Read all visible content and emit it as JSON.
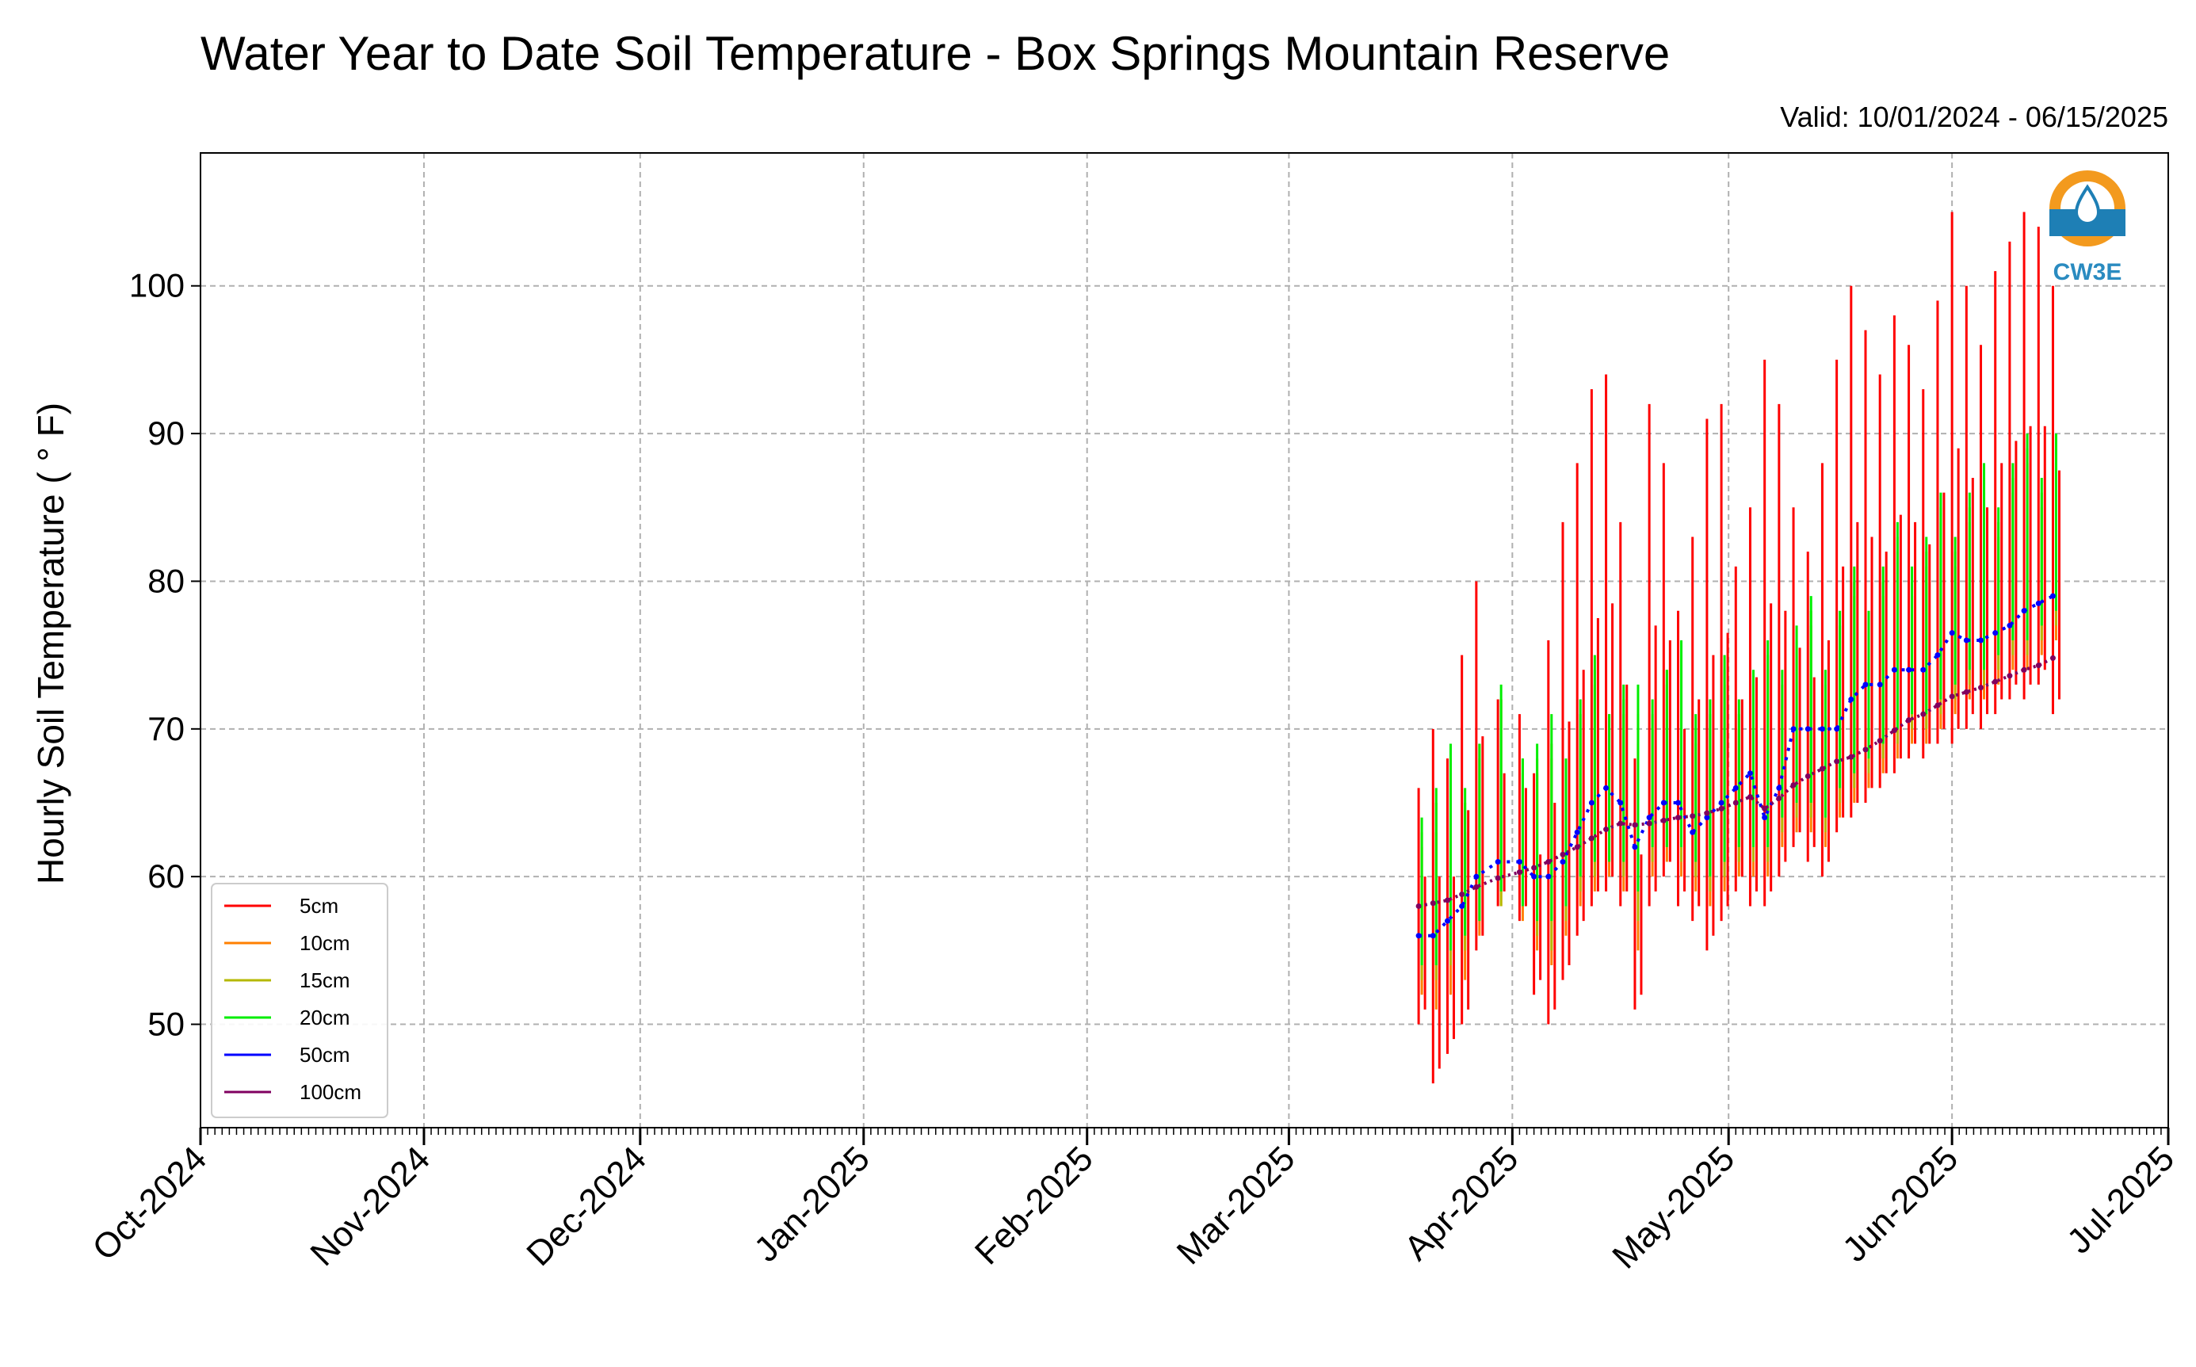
{
  "chart_data": {
    "type": "line",
    "title": "Water Year to Date Soil Temperature - Box Springs Mountain Reserve",
    "subtitle": "Valid: 10/01/2024 - 06/15/2025",
    "xlabel": "",
    "ylabel": "Hourly Soil Temperature ( ° F)",
    "xlim": [
      "2024-10-01",
      "2025-07-01"
    ],
    "ylim": [
      43,
      109
    ],
    "x_ticks": [
      "Oct-2024",
      "Nov-2024",
      "Dec-2024",
      "Jan-2025",
      "Feb-2025",
      "Mar-2025",
      "Apr-2025",
      "May-2025",
      "Jun-2025",
      "Jul-2025"
    ],
    "y_ticks": [
      50,
      60,
      70,
      80,
      90,
      100
    ],
    "grid": true,
    "legend_position": "lower-left",
    "logo_text": "CW3E",
    "series": [
      {
        "name": "5cm",
        "color": "#ff0000",
        "x": [
          "2025-03-19",
          "2025-03-21",
          "2025-03-23",
          "2025-03-25",
          "2025-03-27",
          "2025-03-30",
          "2025-04-02",
          "2025-04-04",
          "2025-04-06",
          "2025-04-08",
          "2025-04-10",
          "2025-04-12",
          "2025-04-14",
          "2025-04-16",
          "2025-04-18",
          "2025-04-20",
          "2025-04-22",
          "2025-04-24",
          "2025-04-26",
          "2025-04-28",
          "2025-04-30",
          "2025-05-02",
          "2025-05-04",
          "2025-05-06",
          "2025-05-08",
          "2025-05-10",
          "2025-05-12",
          "2025-05-14",
          "2025-05-16",
          "2025-05-18",
          "2025-05-20",
          "2025-05-22",
          "2025-05-24",
          "2025-05-26",
          "2025-05-28",
          "2025-05-30",
          "2025-06-01",
          "2025-06-03",
          "2025-06-05",
          "2025-06-07",
          "2025-06-09",
          "2025-06-11",
          "2025-06-13",
          "2025-06-15"
        ],
        "min": [
          50,
          46,
          48,
          50,
          55,
          58,
          57,
          52,
          50,
          53,
          56,
          58,
          59,
          58,
          51,
          58,
          60,
          58,
          57,
          55,
          57,
          59,
          58,
          58,
          60,
          62,
          61,
          60,
          63,
          64,
          65,
          66,
          67,
          68,
          68,
          69,
          69,
          70,
          70,
          71,
          72,
          72,
          73,
          71
        ],
        "max": [
          66,
          70,
          68,
          75,
          80,
          72,
          71,
          67,
          76,
          84,
          88,
          93,
          94,
          84,
          68,
          92,
          88,
          78,
          83,
          91,
          92,
          81,
          85,
          95,
          92,
          85,
          82,
          88,
          95,
          100,
          97,
          94,
          98,
          96,
          93,
          99,
          105,
          100,
          96,
          101,
          103,
          105,
          104,
          100
        ]
      },
      {
        "name": "10cm",
        "color": "#ff8000",
        "x": [
          "2025-03-19",
          "2025-03-21",
          "2025-03-23",
          "2025-03-25",
          "2025-03-27",
          "2025-03-30",
          "2025-04-02",
          "2025-04-04",
          "2025-04-06",
          "2025-04-08",
          "2025-04-10",
          "2025-04-12",
          "2025-04-14",
          "2025-04-16",
          "2025-04-18",
          "2025-04-20",
          "2025-04-22",
          "2025-04-24",
          "2025-04-26",
          "2025-04-28",
          "2025-04-30",
          "2025-05-02",
          "2025-05-04",
          "2025-05-06",
          "2025-05-08",
          "2025-05-10",
          "2025-05-12",
          "2025-05-14",
          "2025-05-16",
          "2025-05-18",
          "2025-05-20",
          "2025-05-22",
          "2025-05-24",
          "2025-05-26",
          "2025-05-28",
          "2025-05-30",
          "2025-06-01",
          "2025-06-03",
          "2025-06-05",
          "2025-06-07",
          "2025-06-09",
          "2025-06-11",
          "2025-06-13",
          "2025-06-15"
        ],
        "min": [
          52,
          51,
          52,
          53,
          56,
          58,
          57,
          55,
          54,
          56,
          58,
          59,
          60,
          59,
          55,
          60,
          61,
          60,
          59,
          58,
          59,
          60,
          60,
          60,
          62,
          63,
          63,
          62,
          64,
          65,
          66,
          67,
          68,
          69,
          69,
          70,
          71,
          72,
          72,
          73,
          74,
          74,
          75,
          76
        ]
      },
      {
        "name": "15cm",
        "color": "#b5b800",
        "x": [
          "2025-03-19",
          "2025-03-21",
          "2025-03-23",
          "2025-03-25",
          "2025-03-27",
          "2025-03-30",
          "2025-04-02",
          "2025-04-04",
          "2025-04-06",
          "2025-04-08",
          "2025-04-10",
          "2025-04-12",
          "2025-04-14",
          "2025-04-16",
          "2025-04-18",
          "2025-04-20",
          "2025-04-22",
          "2025-04-24",
          "2025-04-26",
          "2025-04-28",
          "2025-04-30",
          "2025-05-02",
          "2025-05-04",
          "2025-05-06",
          "2025-05-08",
          "2025-05-10",
          "2025-05-12",
          "2025-05-14",
          "2025-05-16",
          "2025-05-18",
          "2025-05-20",
          "2025-05-22",
          "2025-05-24",
          "2025-05-26",
          "2025-05-28",
          "2025-05-30",
          "2025-06-01",
          "2025-06-03",
          "2025-06-05",
          "2025-06-07",
          "2025-06-09",
          "2025-06-11",
          "2025-06-13",
          "2025-06-15"
        ],
        "min": [
          53,
          53,
          54,
          55,
          57,
          58,
          58,
          56,
          55,
          57,
          59,
          60,
          61,
          60,
          57,
          61,
          62,
          61,
          60,
          59,
          60,
          61,
          61,
          61,
          63,
          64,
          64,
          63,
          65,
          66,
          67,
          68,
          69,
          70,
          70,
          71,
          72,
          73,
          73,
          74,
          75,
          75,
          76,
          77
        ]
      },
      {
        "name": "20cm",
        "color": "#00ee00",
        "x": [
          "2025-03-19",
          "2025-03-21",
          "2025-03-23",
          "2025-03-25",
          "2025-03-27",
          "2025-03-30",
          "2025-04-02",
          "2025-04-04",
          "2025-04-06",
          "2025-04-08",
          "2025-04-10",
          "2025-04-12",
          "2025-04-14",
          "2025-04-16",
          "2025-04-18",
          "2025-04-20",
          "2025-04-22",
          "2025-04-24",
          "2025-04-26",
          "2025-04-28",
          "2025-04-30",
          "2025-05-02",
          "2025-05-04",
          "2025-05-06",
          "2025-05-08",
          "2025-05-10",
          "2025-05-12",
          "2025-05-14",
          "2025-05-16",
          "2025-05-18",
          "2025-05-20",
          "2025-05-22",
          "2025-05-24",
          "2025-05-26",
          "2025-05-28",
          "2025-05-30",
          "2025-06-01",
          "2025-06-03",
          "2025-06-05",
          "2025-06-07",
          "2025-06-09",
          "2025-06-11",
          "2025-06-13",
          "2025-06-15"
        ],
        "min": [
          54,
          54,
          55,
          56,
          57,
          59,
          58,
          57,
          57,
          58,
          60,
          61,
          61,
          61,
          59,
          62,
          62,
          62,
          61,
          60,
          61,
          62,
          62,
          62,
          64,
          65,
          65,
          64,
          66,
          67,
          68,
          69,
          70,
          71,
          71,
          72,
          73,
          74,
          74,
          75,
          76,
          76,
          77,
          78
        ]
      },
      {
        "name": "50cm",
        "color": "#0000ff",
        "x": [
          "2025-03-19",
          "2025-03-21",
          "2025-03-23",
          "2025-03-25",
          "2025-03-27",
          "2025-03-30",
          "2025-04-02",
          "2025-04-04",
          "2025-04-06",
          "2025-04-08",
          "2025-04-10",
          "2025-04-12",
          "2025-04-14",
          "2025-04-16",
          "2025-04-18",
          "2025-04-20",
          "2025-04-22",
          "2025-04-24",
          "2025-04-26",
          "2025-04-28",
          "2025-04-30",
          "2025-05-02",
          "2025-05-04",
          "2025-05-06",
          "2025-05-08",
          "2025-05-10",
          "2025-05-12",
          "2025-05-14",
          "2025-05-16",
          "2025-05-18",
          "2025-05-20",
          "2025-05-22",
          "2025-05-24",
          "2025-05-26",
          "2025-05-28",
          "2025-05-30",
          "2025-06-01",
          "2025-06-03",
          "2025-06-05",
          "2025-06-07",
          "2025-06-09",
          "2025-06-11",
          "2025-06-13",
          "2025-06-15"
        ],
        "values": [
          56,
          56,
          57,
          58,
          60,
          61,
          61,
          60,
          60,
          61,
          63,
          65,
          66,
          65,
          62,
          64,
          65,
          65,
          63,
          64,
          65,
          66,
          67,
          64,
          66,
          70,
          70,
          70,
          70,
          72,
          73,
          73,
          74,
          74,
          74,
          75,
          76.5,
          76,
          76,
          76.5,
          77,
          78,
          78.5,
          79
        ]
      },
      {
        "name": "100cm",
        "color": "#800060",
        "x": [
          "2025-03-19",
          "2025-03-21",
          "2025-03-23",
          "2025-03-25",
          "2025-03-27",
          "2025-03-30",
          "2025-04-02",
          "2025-04-04",
          "2025-04-06",
          "2025-04-08",
          "2025-04-10",
          "2025-04-12",
          "2025-04-14",
          "2025-04-16",
          "2025-04-18",
          "2025-04-20",
          "2025-04-22",
          "2025-04-24",
          "2025-04-26",
          "2025-04-28",
          "2025-04-30",
          "2025-05-02",
          "2025-05-04",
          "2025-05-06",
          "2025-05-08",
          "2025-05-10",
          "2025-05-12",
          "2025-05-14",
          "2025-05-16",
          "2025-05-18",
          "2025-05-20",
          "2025-05-22",
          "2025-05-24",
          "2025-05-26",
          "2025-05-28",
          "2025-05-30",
          "2025-06-01",
          "2025-06-03",
          "2025-06-05",
          "2025-06-07",
          "2025-06-09",
          "2025-06-11",
          "2025-06-13",
          "2025-06-15"
        ],
        "values": [
          58,
          58.2,
          58.4,
          58.8,
          59.3,
          59.9,
          60.3,
          60.6,
          61,
          61.5,
          62,
          62.6,
          63.2,
          63.6,
          63.5,
          63.6,
          63.8,
          64,
          64.1,
          64.3,
          64.6,
          65,
          65.4,
          64.6,
          65.3,
          66.2,
          66.8,
          67.3,
          67.8,
          68.1,
          68.6,
          69.2,
          69.9,
          70.6,
          71,
          71.6,
          72.2,
          72.5,
          72.8,
          73.2,
          73.6,
          74,
          74.3,
          74.8
        ]
      }
    ]
  }
}
